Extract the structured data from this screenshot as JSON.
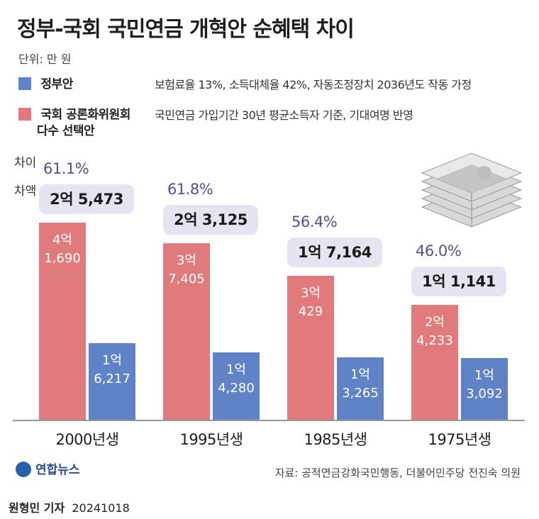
{
  "title": "정부-국회 국민연금 개혁안 순혜택 차이",
  "unit": "단위: 만 원",
  "legend": [
    {
      "label": "정부안",
      "desc": "보험료율 13%, 소득대체율 42%, 자동조정장치 2036년도 작동 가정",
      "color": "#5f83c6"
    },
    {
      "label_line1": "국회 공론화위원회",
      "label_line2": "다수 선택안",
      "desc": "국민연금 가입기간 30년 평균소득자 기준, 기대여명 반영",
      "color": "#e07a7c"
    }
  ],
  "side_labels": {
    "pct": "차이",
    "amount": "차액"
  },
  "chart_data": {
    "type": "bar",
    "categories": [
      "2000년생",
      "1995년생",
      "1985년생",
      "1975년생"
    ],
    "series": [
      {
        "name": "국회 공론화위원회 다수 선택안",
        "values": [
          41690,
          37405,
          30429,
          24233
        ],
        "labels": [
          "4억\n1,690",
          "3억\n7,405",
          "3억\n429",
          "2억\n4,233"
        ]
      },
      {
        "name": "정부안",
        "values": [
          16217,
          14280,
          13265,
          13092
        ],
        "labels": [
          "1억\n6,217",
          "1억\n4,280",
          "1억\n3,265",
          "1억\n3,092"
        ]
      }
    ],
    "difference_pct": [
      "61.1%",
      "61.8%",
      "56.4%",
      "46.0%"
    ],
    "difference_amount": [
      "2억 5,473",
      "2억 3,125",
      "1억 7,164",
      "1억 1,141"
    ],
    "ylim": [
      0,
      45000
    ]
  },
  "source": "자료: 공적연금강화국민행동, 더불어민주당 전진숙 의원",
  "logo": "연합뉴스",
  "byline": {
    "name": "원형민 기자",
    "date": "20241018"
  }
}
